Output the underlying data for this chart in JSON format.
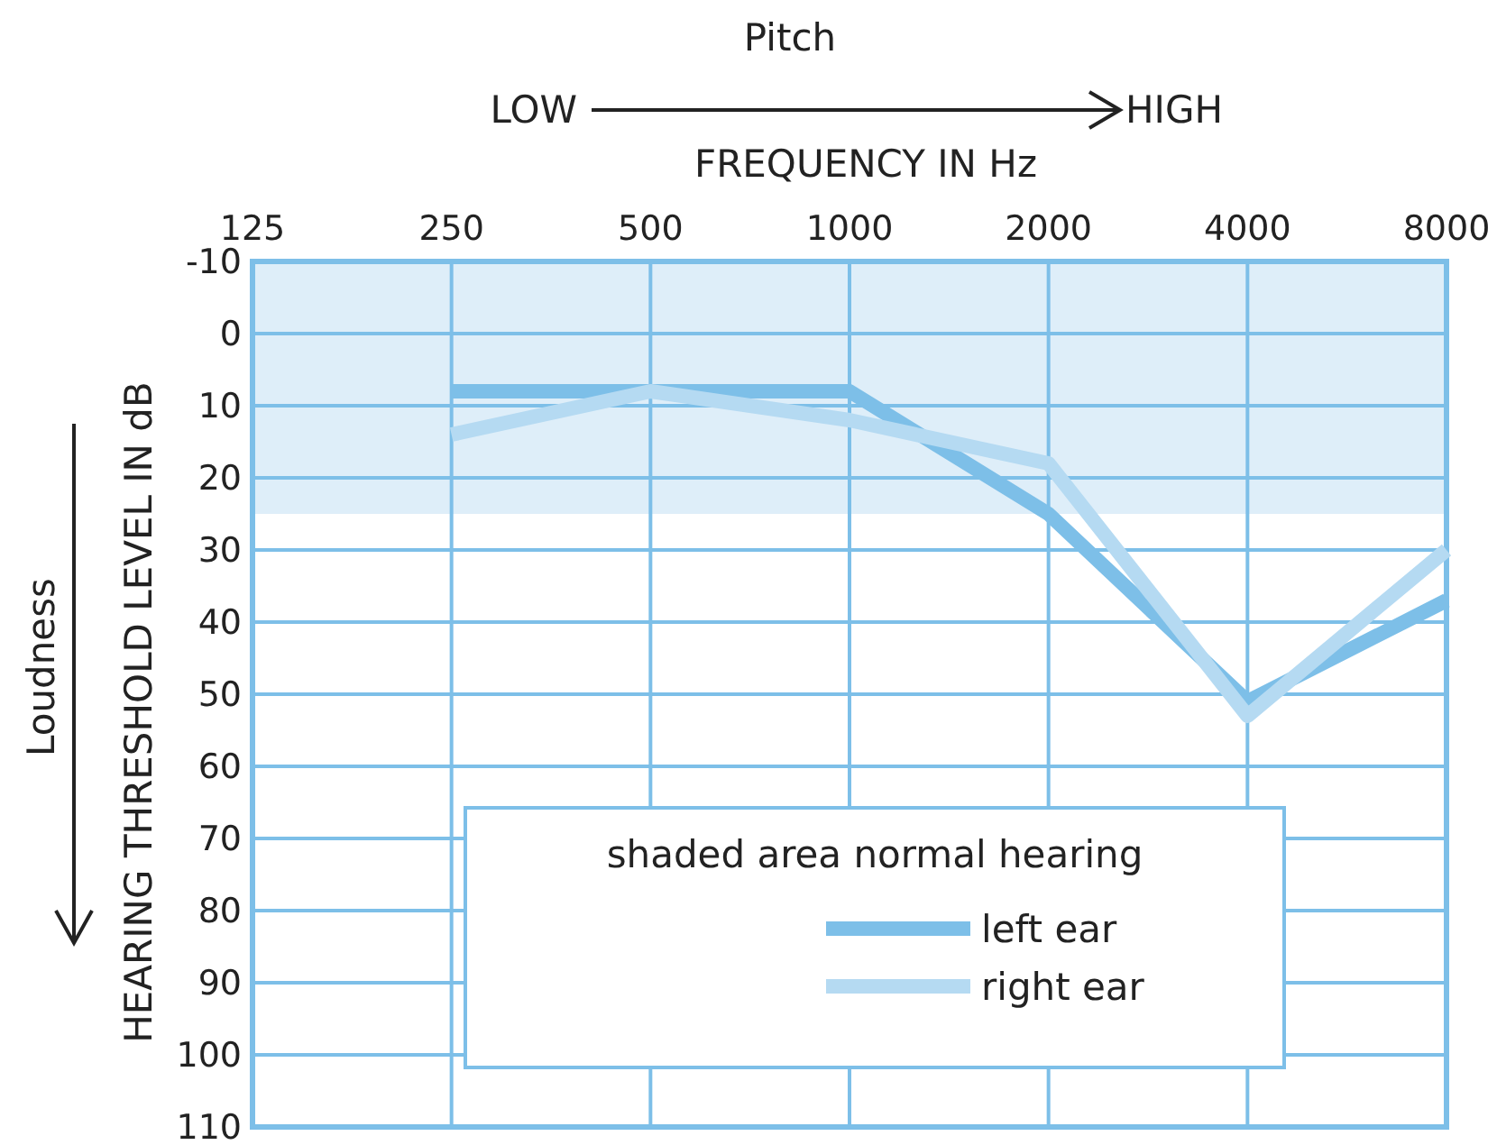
{
  "chart_data": {
    "type": "line",
    "annotations": [
      "Pitch",
      "LOW",
      "HIGH",
      "Loudness"
    ],
    "xlabel": "FREQUENCY IN Hz",
    "ylabel": "HEARING THRESHOLD LEVEL IN dB",
    "legend_title": "shaded area normal hearing",
    "x": [
      250,
      500,
      1000,
      2000,
      4000,
      8000
    ],
    "series": [
      {
        "name": "left ear",
        "color": "#7dbfe8",
        "values": [
          8,
          8,
          8,
          25,
          51,
          37
        ]
      },
      {
        "name": "right ear",
        "color": "#b5daf2",
        "values": [
          14,
          8,
          12,
          18,
          53,
          30
        ]
      }
    ],
    "log": "x",
    "xlim": [
      125,
      8000
    ],
    "xticks": [
      125,
      250,
      500,
      1000,
      2000,
      4000,
      8000
    ],
    "ylim": [
      110,
      -10
    ],
    "yticks": [
      -10,
      0,
      10,
      20,
      30,
      40,
      50,
      60,
      70,
      80,
      90,
      100,
      110
    ],
    "bands": [
      {
        "axis": "y",
        "from": -10,
        "to": 25,
        "color": "#deeef9"
      }
    ],
    "grid": true,
    "legend": "bottom",
    "line_style": "solid",
    "marker": "none"
  }
}
